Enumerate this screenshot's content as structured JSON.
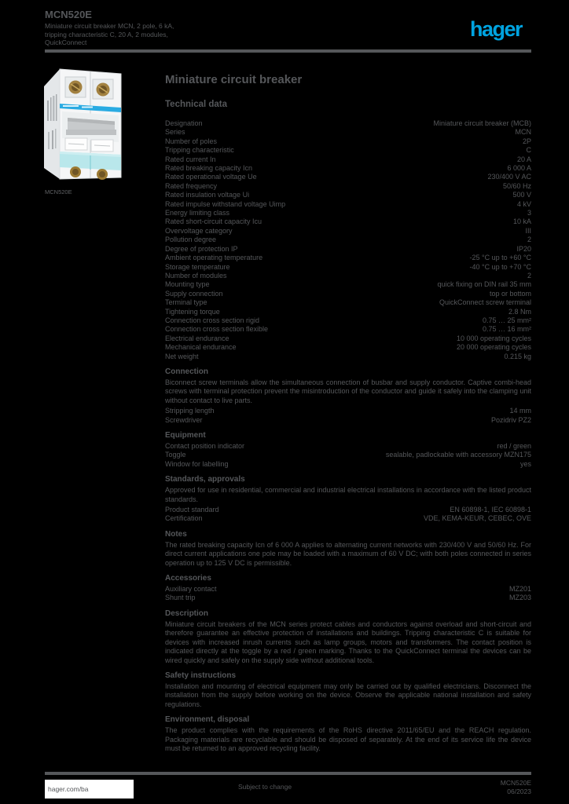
{
  "header": {
    "reference": "MCN520E",
    "description": "Miniature circuit breaker MCN, 2 pole, 6 kA, tripping characteristic C, 20 A, 2 modules, QuickConnect",
    "logo_text": "hager"
  },
  "product": {
    "image_caption": "MCN520E"
  },
  "main": {
    "title": "Miniature circuit breaker",
    "subtitle": "Technical data"
  },
  "spec_table": {
    "rows": [
      {
        "label": "Designation",
        "value": "Miniature circuit breaker (MCB)"
      },
      {
        "label": "Series",
        "value": "MCN"
      },
      {
        "label": "Number of poles",
        "value": "2P"
      },
      {
        "label": "Tripping characteristic",
        "value": "C"
      },
      {
        "label": "Rated current In",
        "value": "20 A"
      },
      {
        "label": "Rated breaking capacity Icn",
        "value": "6 000 A"
      },
      {
        "label": "Rated operational voltage Ue",
        "value": "230/400 V AC"
      },
      {
        "label": "Rated frequency",
        "value": "50/60 Hz"
      },
      {
        "label": "Rated insulation voltage Ui",
        "value": "500 V"
      },
      {
        "label": "Rated impulse withstand voltage Uimp",
        "value": "4 kV"
      },
      {
        "label": "Energy limiting class",
        "value": "3"
      },
      {
        "label": "Rated short-circuit capacity Icu",
        "value": "10 kA"
      },
      {
        "label": "Overvoltage category",
        "value": "III"
      },
      {
        "label": "Pollution degree",
        "value": "2"
      },
      {
        "label": "Degree of protection IP",
        "value": "IP20"
      },
      {
        "label": "Ambient operating temperature",
        "value": "-25 °C up to +60 °C"
      },
      {
        "label": "Storage temperature",
        "value": "-40 °C up to +70 °C"
      },
      {
        "label": "Number of modules",
        "value": "2"
      },
      {
        "label": "Mounting type",
        "value": "quick fixing on DIN rail 35 mm"
      },
      {
        "label": "Supply connection",
        "value": "top or bottom"
      },
      {
        "label": "Terminal type",
        "value": "QuickConnect screw terminal"
      },
      {
        "label": "Tightening torque",
        "value": "2.8 Nm"
      },
      {
        "label": "Connection cross section rigid",
        "value": "0.75 … 25 mm²"
      },
      {
        "label": "Connection cross section flexible",
        "value": "0.75 … 16 mm²"
      },
      {
        "label": "Electrical endurance",
        "value": "10 000 operating cycles"
      },
      {
        "label": "Mechanical endurance",
        "value": "20 000 operating cycles"
      },
      {
        "label": "Net weight",
        "value": "0.215 kg"
      }
    ]
  },
  "sections": [
    {
      "heading": "Connection",
      "paragraphs": [
        "Biconnect screw terminals allow the simultaneous connection of busbar and supply conductor. Captive combi-head screws with terminal protection prevent the misintroduction of the conductor and guide it safely into the clamping unit without contact to live parts."
      ],
      "rows": [
        {
          "label": "Stripping length",
          "value": "14 mm"
        },
        {
          "label": "Screwdriver",
          "value": "Pozidriv PZ2"
        }
      ]
    },
    {
      "heading": "Equipment",
      "paragraphs": [],
      "rows": [
        {
          "label": "Contact position indicator",
          "value": "red / green"
        },
        {
          "label": "Toggle",
          "value": "sealable, padlockable with accessory MZN175"
        },
        {
          "label": "Window for labelling",
          "value": "yes"
        }
      ]
    },
    {
      "heading": "Standards, approvals",
      "paragraphs": [
        "Approved for use in residential, commercial and industrial electrical installations in accordance with the listed product standards."
      ],
      "rows": [
        {
          "label": "Product standard",
          "value": "EN 60898-1, IEC 60898-1"
        },
        {
          "label": "Certification",
          "value": "VDE, KEMA-KEUR, CEBEC, OVE"
        }
      ]
    },
    {
      "heading": "Notes",
      "paragraphs": [
        "The rated breaking capacity Icn of 6 000 A applies to alternating current networks with 230/400 V and 50/60 Hz. For direct current applications one pole may be loaded with a maximum of 60 V DC; with both poles connected in series operation up to 125 V DC is permissible."
      ],
      "rows": []
    },
    {
      "heading": "Accessories",
      "paragraphs": [],
      "rows": [
        {
          "label": "Auxiliary contact",
          "value": "MZ201"
        },
        {
          "label": "Shunt trip",
          "value": "MZ203"
        }
      ]
    },
    {
      "heading": "Description",
      "paragraphs": [
        "Miniature circuit breakers of the MCN series protect cables and conductors against overload and short-circuit and therefore guarantee an effective protection of installations and buildings. Tripping characteristic C is suitable for devices with increased inrush currents such as lamp groups, motors and transformers. The contact position is indicated directly at the toggle by a red / green marking. Thanks to the QuickConnect terminal the devices can be wired quickly and safely on the supply side without additional tools."
      ],
      "rows": []
    },
    {
      "heading": "Safety instructions",
      "paragraphs": [
        "Installation and mounting of electrical equipment may only be carried out by qualified electricians. Disconnect the installation from the supply before working on the device. Observe the applicable national installation and safety regulations."
      ],
      "rows": []
    },
    {
      "heading": "Environment, disposal",
      "paragraphs": [
        "The product complies with the requirements of the RoHS directive 2011/65/EU and the REACH regulation. Packaging materials are recyclable and should be disposed of separately. At the end of its service life the device must be returned to an approved recycling facility."
      ],
      "rows": []
    }
  ],
  "footer": {
    "url": "hager.com/ba",
    "note": "Subject to change",
    "meta_line1": "MCN520E",
    "meta_line2": "06/2023"
  },
  "colors": {
    "accent_logo": "#00a3e0",
    "text_gray": "#55575a",
    "label_aqua": "#b9e7eb",
    "stripe_cyan": "#2aabe2"
  }
}
